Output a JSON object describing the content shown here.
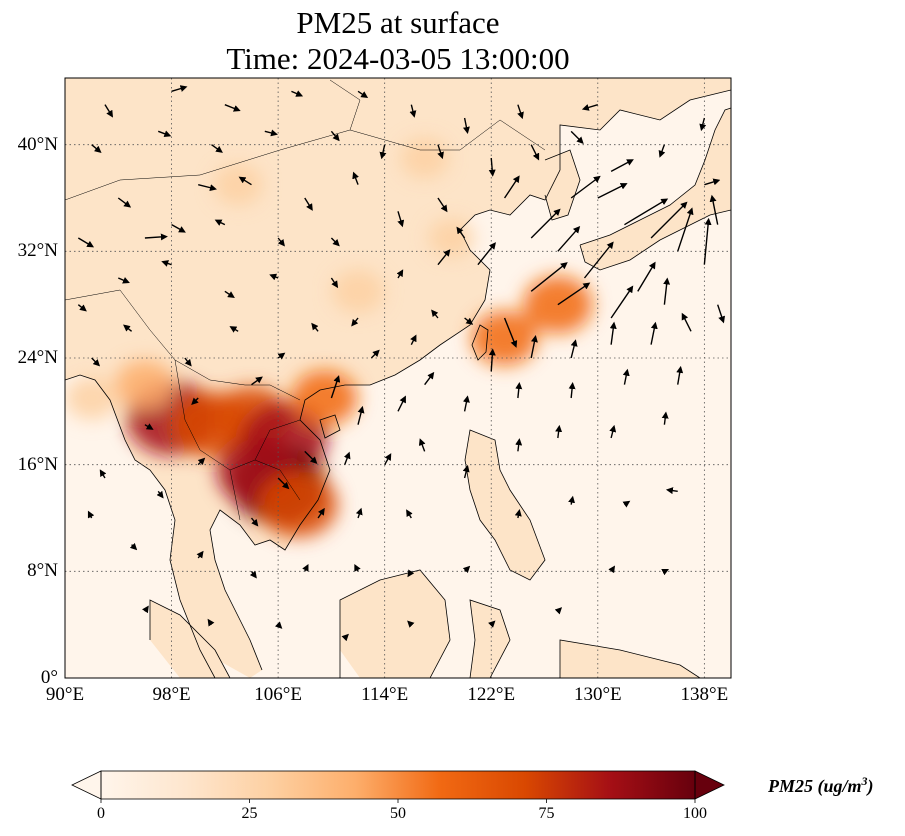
{
  "title_line1": "PM25 at surface",
  "title_line2": "Time: 2024-03-05 13:00:00",
  "lat_ticks": [
    "40°N",
    "32°N",
    "24°N",
    "16°N",
    "8°N",
    "0°"
  ],
  "lat_values": [
    40,
    32,
    24,
    16,
    8,
    0
  ],
  "lon_ticks": [
    "90°E",
    "98°E",
    "106°E",
    "114°E",
    "122°E",
    "130°E",
    "138°E"
  ],
  "lon_values": [
    90,
    98,
    106,
    114,
    122,
    130,
    138
  ],
  "map_extent": {
    "lon_min": 90,
    "lon_max": 140,
    "lat_min": 0,
    "lat_max": 45
  },
  "colorbar": {
    "label": "PM25 (ug/m",
    "label_sup": "3",
    "label_close": ")",
    "ticks": [
      "0",
      "25",
      "50",
      "75",
      "100"
    ],
    "tick_values": [
      0,
      25,
      50,
      75,
      100
    ],
    "range": [
      0,
      100
    ],
    "colormap": [
      "#fff5eb",
      "#fee6ce",
      "#fdd0a2",
      "#fdae6b",
      "#f16913",
      "#d94801",
      "#a50f15",
      "#67000d"
    ],
    "extend": "both"
  },
  "hotspots": [
    {
      "lon": 98,
      "lat": 19.5,
      "intensity": 90
    },
    {
      "lon": 101,
      "lat": 19,
      "intensity": 75
    },
    {
      "lon": 104,
      "lat": 19.5,
      "intensity": 70
    },
    {
      "lon": 106.5,
      "lat": 18,
      "intensity": 85
    },
    {
      "lon": 106,
      "lat": 14.5,
      "intensity": 100
    },
    {
      "lon": 104.5,
      "lat": 15.5,
      "intensity": 80
    },
    {
      "lon": 107.5,
      "lat": 13,
      "intensity": 75
    },
    {
      "lon": 109.5,
      "lat": 21,
      "intensity": 55
    },
    {
      "lon": 123,
      "lat": 25.5,
      "intensity": 55
    },
    {
      "lon": 127,
      "lat": 28,
      "intensity": 60
    },
    {
      "lon": 112,
      "lat": 29,
      "intensity": 35
    },
    {
      "lon": 96,
      "lat": 22,
      "intensity": 45
    },
    {
      "lon": 103,
      "lat": 37,
      "intensity": 30
    },
    {
      "lon": 117,
      "lat": 39,
      "intensity": 30
    },
    {
      "lon": 119,
      "lat": 33,
      "intensity": 25
    },
    {
      "lon": 92,
      "lat": 21,
      "intensity": 35
    }
  ],
  "wind_vectors": [
    {
      "lon": 132,
      "lat": 34,
      "u": 3.0,
      "v": 1.8
    },
    {
      "lon": 134,
      "lat": 33,
      "u": 2.5,
      "v": 2.5
    },
    {
      "lon": 136,
      "lat": 32,
      "u": 1.0,
      "v": 3.0
    },
    {
      "lon": 138,
      "lat": 31,
      "u": 0.3,
      "v": 3.2
    },
    {
      "lon": 129,
      "lat": 30,
      "u": 2.0,
      "v": 2.5
    },
    {
      "lon": 127,
      "lat": 28,
      "u": 2.2,
      "v": 1.5
    },
    {
      "lon": 125,
      "lat": 29,
      "u": 2.5,
      "v": 2.0
    },
    {
      "lon": 131,
      "lat": 27,
      "u": 1.5,
      "v": 2.2
    },
    {
      "lon": 133,
      "lat": 29,
      "u": 1.2,
      "v": 2.0
    },
    {
      "lon": 135,
      "lat": 28,
      "u": 0.2,
      "v": 1.8
    },
    {
      "lon": 125,
      "lat": 33,
      "u": 2.0,
      "v": 2.0
    },
    {
      "lon": 128,
      "lat": 36,
      "u": 2.0,
      "v": 1.5
    },
    {
      "lon": 131,
      "lat": 38,
      "u": 1.5,
      "v": 0.8
    },
    {
      "lon": 123,
      "lat": 36,
      "u": 1.0,
      "v": 1.5
    },
    {
      "lon": 121,
      "lat": 31,
      "u": 1.2,
      "v": 1.5
    },
    {
      "lon": 123,
      "lat": 27,
      "u": 0.8,
      "v": -2.0
    },
    {
      "lon": 118,
      "lat": 31,
      "u": 0.8,
      "v": 1.0
    },
    {
      "lon": 125,
      "lat": 24,
      "u": 0.3,
      "v": 1.5
    },
    {
      "lon": 128,
      "lat": 24,
      "u": 0.3,
      "v": 1.2
    },
    {
      "lon": 131,
      "lat": 25,
      "u": 0.2,
      "v": 1.5
    },
    {
      "lon": 134,
      "lat": 25,
      "u": 0.3,
      "v": 1.5
    },
    {
      "lon": 122,
      "lat": 23,
      "u": 0.1,
      "v": 1.5
    },
    {
      "lon": 124,
      "lat": 21,
      "u": 0.1,
      "v": 1.0
    },
    {
      "lon": 128,
      "lat": 21,
      "u": 0.1,
      "v": 1.0
    },
    {
      "lon": 132,
      "lat": 22,
      "u": 0.2,
      "v": 1.0
    },
    {
      "lon": 136,
      "lat": 22,
      "u": 0.2,
      "v": 1.2
    },
    {
      "lon": 110,
      "lat": 21,
      "u": 0.5,
      "v": 1.5
    },
    {
      "lon": 112,
      "lat": 19,
      "u": 0.3,
      "v": 1.2
    },
    {
      "lon": 115,
      "lat": 20,
      "u": 0.5,
      "v": 1.0
    },
    {
      "lon": 117,
      "lat": 22,
      "u": 0.6,
      "v": 0.8
    },
    {
      "lon": 120,
      "lat": 20,
      "u": 0.2,
      "v": 1.0
    },
    {
      "lon": 108,
      "lat": 17,
      "u": 0.8,
      "v": -0.8
    },
    {
      "lon": 111,
      "lat": 16,
      "u": 0.3,
      "v": 0.8
    },
    {
      "lon": 114,
      "lat": 16,
      "u": 0.4,
      "v": 0.7
    },
    {
      "lon": 117,
      "lat": 17,
      "u": -0.3,
      "v": 0.8
    },
    {
      "lon": 120,
      "lat": 15,
      "u": 0.2,
      "v": 0.8
    },
    {
      "lon": 124,
      "lat": 17,
      "u": 0.1,
      "v": 0.8
    },
    {
      "lon": 127,
      "lat": 18,
      "u": 0.1,
      "v": 0.8
    },
    {
      "lon": 131,
      "lat": 18,
      "u": 0.2,
      "v": 0.8
    },
    {
      "lon": 135,
      "lat": 19,
      "u": 0.1,
      "v": 0.8
    },
    {
      "lon": 106,
      "lat": 15,
      "u": 0.7,
      "v": -0.7
    },
    {
      "lon": 104,
      "lat": 12,
      "u": 0.4,
      "v": -0.5
    },
    {
      "lon": 109,
      "lat": 12,
      "u": 0.4,
      "v": 0.6
    },
    {
      "lon": 112,
      "lat": 12,
      "u": 0.2,
      "v": 0.6
    },
    {
      "lon": 116,
      "lat": 12,
      "u": -0.3,
      "v": 0.5
    },
    {
      "lon": 124,
      "lat": 12,
      "u": 0.1,
      "v": 0.5
    },
    {
      "lon": 128,
      "lat": 13,
      "u": 0.1,
      "v": 0.5
    },
    {
      "lon": 132,
      "lat": 13,
      "u": 0.3,
      "v": 0.2
    },
    {
      "lon": 136,
      "lat": 14,
      "u": -0.7,
      "v": 0.1
    },
    {
      "lon": 100,
      "lat": 16,
      "u": 0.4,
      "v": 0.4
    },
    {
      "lon": 97,
      "lat": 14,
      "u": 0.3,
      "v": -0.4
    },
    {
      "lon": 93,
      "lat": 15,
      "u": -0.3,
      "v": 0.5
    },
    {
      "lon": 92,
      "lat": 12,
      "u": -0.2,
      "v": 0.4
    },
    {
      "lon": 95,
      "lat": 10,
      "u": 0.3,
      "v": -0.3
    },
    {
      "lon": 100,
      "lat": 9,
      "u": 0.3,
      "v": 0.4
    },
    {
      "lon": 104,
      "lat": 8,
      "u": 0.3,
      "v": -0.4
    },
    {
      "lon": 108,
      "lat": 8,
      "u": 0.2,
      "v": 0.4
    },
    {
      "lon": 112,
      "lat": 8,
      "u": -0.2,
      "v": 0.4
    },
    {
      "lon": 116,
      "lat": 8,
      "u": -0.2,
      "v": -0.3
    },
    {
      "lon": 120,
      "lat": 8,
      "u": 0.3,
      "v": 0.3
    },
    {
      "lon": 96,
      "lat": 5,
      "u": 0.2,
      "v": 0.3
    },
    {
      "lon": 101,
      "lat": 4,
      "u": -0.2,
      "v": 0.3
    },
    {
      "lon": 106,
      "lat": 4,
      "u": 0.2,
      "v": -0.2
    },
    {
      "lon": 111,
      "lat": 3,
      "u": 0.2,
      "v": 0.2
    },
    {
      "lon": 116,
      "lat": 4,
      "u": -0.2,
      "v": 0.2
    },
    {
      "lon": 122,
      "lat": 4,
      "u": 0.2,
      "v": 0.2
    },
    {
      "lon": 127,
      "lat": 5,
      "u": 0.2,
      "v": 0.2
    },
    {
      "lon": 131,
      "lat": 8,
      "u": 0.2,
      "v": 0.3
    },
    {
      "lon": 135,
      "lat": 8,
      "u": 0.2,
      "v": 0.1
    },
    {
      "lon": 92,
      "lat": 24,
      "u": 0.5,
      "v": -0.5
    },
    {
      "lon": 95,
      "lat": 26,
      "u": -0.5,
      "v": 0.4
    },
    {
      "lon": 99,
      "lat": 24,
      "u": 0.4,
      "v": -0.5
    },
    {
      "lon": 103,
      "lat": 26,
      "u": -0.5,
      "v": 0.3
    },
    {
      "lon": 106,
      "lat": 24,
      "u": 0.4,
      "v": 0.3
    },
    {
      "lon": 104,
      "lat": 22,
      "u": 0.7,
      "v": 0.5
    },
    {
      "lon": 100,
      "lat": 21,
      "u": -0.4,
      "v": -0.4
    },
    {
      "lon": 96,
      "lat": 19,
      "u": 0.5,
      "v": -0.3
    },
    {
      "lon": 102,
      "lat": 29,
      "u": 0.6,
      "v": -0.4
    },
    {
      "lon": 98,
      "lat": 31,
      "u": -0.6,
      "v": 0.2
    },
    {
      "lon": 94,
      "lat": 30,
      "u": 0.7,
      "v": -0.3
    },
    {
      "lon": 91,
      "lat": 28,
      "u": 0.5,
      "v": -0.4
    },
    {
      "lon": 109,
      "lat": 26,
      "u": -0.4,
      "v": 0.5
    },
    {
      "lon": 113,
      "lat": 24,
      "u": 0.5,
      "v": 0.5
    },
    {
      "lon": 116,
      "lat": 25,
      "u": 0.3,
      "v": 0.6
    },
    {
      "lon": 112,
      "lat": 27,
      "u": -0.4,
      "v": -0.5
    },
    {
      "lon": 110,
      "lat": 30,
      "u": 0.4,
      "v": -0.6
    },
    {
      "lon": 106,
      "lat": 30,
      "u": -0.5,
      "v": 0.2
    },
    {
      "lon": 115,
      "lat": 30,
      "u": 0.3,
      "v": 0.5
    },
    {
      "lon": 106,
      "lat": 33,
      "u": 0.4,
      "v": -0.5
    },
    {
      "lon": 102,
      "lat": 34,
      "u": -0.6,
      "v": 0.3
    },
    {
      "lon": 98,
      "lat": 34,
      "u": 0.9,
      "v": -0.5
    },
    {
      "lon": 94,
      "lat": 36,
      "u": 0.8,
      "v": -0.6
    },
    {
      "lon": 91,
      "lat": 33,
      "u": 1.0,
      "v": -0.6
    },
    {
      "lon": 96,
      "lat": 33,
      "u": 1.5,
      "v": 0.1
    },
    {
      "lon": 100,
      "lat": 37,
      "u": 1.2,
      "v": -0.3
    },
    {
      "lon": 104,
      "lat": 37,
      "u": -0.8,
      "v": 0.5
    },
    {
      "lon": 108,
      "lat": 36,
      "u": 0.5,
      "v": -0.8
    },
    {
      "lon": 112,
      "lat": 37,
      "u": -0.3,
      "v": 0.8
    },
    {
      "lon": 115,
      "lat": 35,
      "u": 0.3,
      "v": -1.0
    },
    {
      "lon": 118,
      "lat": 36,
      "u": 0.6,
      "v": -0.9
    },
    {
      "lon": 110,
      "lat": 33,
      "u": 0.5,
      "v": -0.5
    },
    {
      "lon": 92,
      "lat": 40,
      "u": 0.6,
      "v": -0.5
    },
    {
      "lon": 97,
      "lat": 41,
      "u": 0.8,
      "v": -0.3
    },
    {
      "lon": 101,
      "lat": 40,
      "u": 0.7,
      "v": -0.5
    },
    {
      "lon": 105,
      "lat": 41,
      "u": 0.8,
      "v": -0.2
    },
    {
      "lon": 110,
      "lat": 41,
      "u": 0.5,
      "v": -0.6
    },
    {
      "lon": 114,
      "lat": 40,
      "u": -0.2,
      "v": -0.9
    },
    {
      "lon": 118,
      "lat": 40,
      "u": 0.3,
      "v": -0.9
    },
    {
      "lon": 122,
      "lat": 39,
      "u": 0.1,
      "v": -1.2
    },
    {
      "lon": 125,
      "lat": 40,
      "u": 0.5,
      "v": -1.0
    },
    {
      "lon": 128,
      "lat": 41,
      "u": 0.8,
      "v": -0.8
    },
    {
      "lon": 93,
      "lat": 43,
      "u": 0.5,
      "v": -0.8
    },
    {
      "lon": 98,
      "lat": 44,
      "u": 1.0,
      "v": 0.3
    },
    {
      "lon": 102,
      "lat": 43,
      "u": 1.0,
      "v": -0.4
    },
    {
      "lon": 107,
      "lat": 44,
      "u": 0.7,
      "v": -0.3
    },
    {
      "lon": 112,
      "lat": 44,
      "u": 0.6,
      "v": -0.4
    },
    {
      "lon": 116,
      "lat": 43,
      "u": 0.2,
      "v": -0.8
    },
    {
      "lon": 120,
      "lat": 42,
      "u": 0.2,
      "v": -1.0
    },
    {
      "lon": 124,
      "lat": 43,
      "u": 0.3,
      "v": -0.9
    },
    {
      "lon": 130,
      "lat": 43,
      "u": -1.0,
      "v": -0.3
    },
    {
      "lon": 135,
      "lat": 40,
      "u": -0.3,
      "v": -0.8
    },
    {
      "lon": 138,
      "lat": 42,
      "u": -0.2,
      "v": -0.8
    },
    {
      "lon": 138,
      "lat": 37,
      "u": 1.0,
      "v": 0.3
    },
    {
      "lon": 139,
      "lat": 34,
      "u": -0.4,
      "v": 2.0
    },
    {
      "lon": 137,
      "lat": 26,
      "u": -0.6,
      "v": 1.2
    },
    {
      "lon": 139,
      "lat": 28,
      "u": 0.4,
      "v": -1.2
    },
    {
      "lon": 127,
      "lat": 32,
      "u": 1.5,
      "v": 1.7
    },
    {
      "lon": 130,
      "lat": 36,
      "u": 2.0,
      "v": 1.0
    },
    {
      "lon": 120,
      "lat": 27,
      "u": 0.5,
      "v": -0.4
    },
    {
      "lon": 118,
      "lat": 27,
      "u": -0.4,
      "v": 0.5
    },
    {
      "lon": 120,
      "lat": 33,
      "u": -0.5,
      "v": 0.7
    }
  ],
  "colors": {
    "ocean_base": "#fff5eb",
    "land_base": "#fde4c8",
    "coastline": "#000000",
    "gridline": "#555555",
    "arrow": "#000000"
  }
}
